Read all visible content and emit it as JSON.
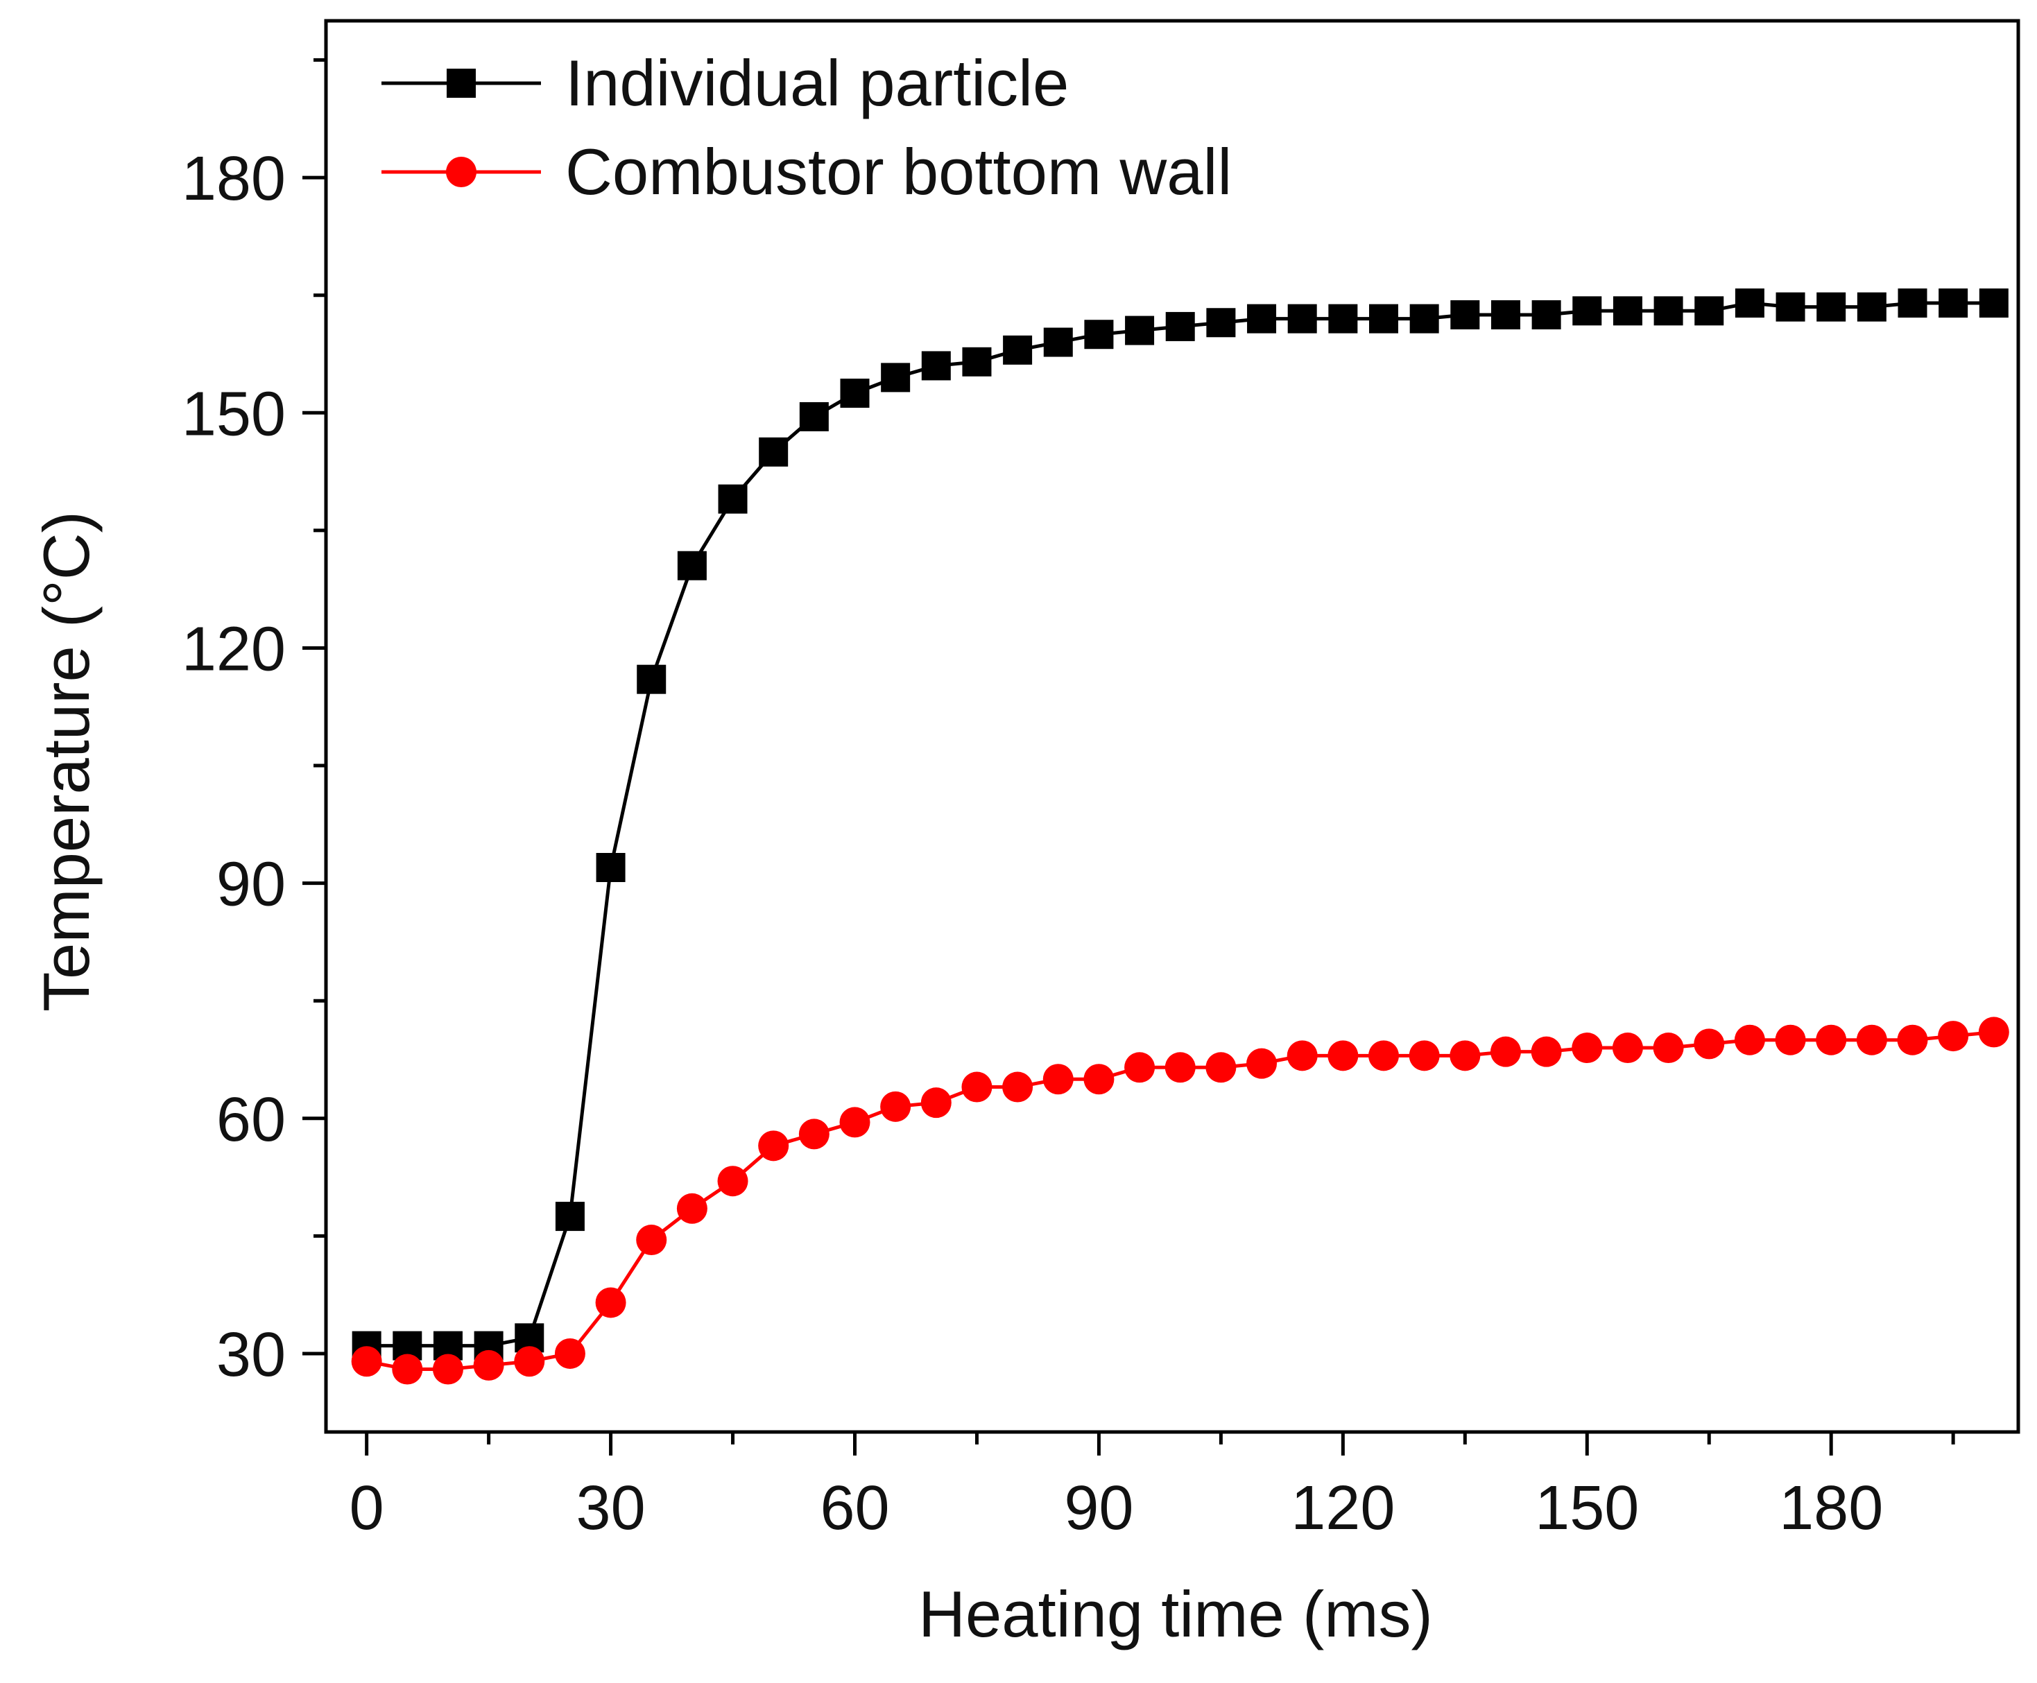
{
  "chart_data": {
    "type": "line",
    "title": "",
    "xlabel": "Heating time (ms)",
    "ylabel": "Temperature (°C)",
    "xlim": [
      -5,
      203
    ],
    "ylim": [
      20,
      200
    ],
    "xticks": [
      0,
      30,
      60,
      90,
      120,
      150,
      180
    ],
    "xticks_minor": [
      15,
      45,
      75,
      105,
      135,
      165,
      195
    ],
    "yticks": [
      30,
      60,
      90,
      120,
      150,
      180
    ],
    "yticks_minor": [
      45,
      75,
      105,
      135,
      165,
      195
    ],
    "legend_position": "top-left",
    "grid": false,
    "x": [
      0,
      5,
      10,
      15,
      20,
      25,
      30,
      35,
      40,
      45,
      50,
      55,
      60,
      65,
      70,
      75,
      80,
      85,
      90,
      95,
      100,
      105,
      110,
      115,
      120,
      125,
      130,
      135,
      140,
      145,
      150,
      155,
      160,
      165,
      170,
      175,
      180,
      185,
      190,
      195,
      200
    ],
    "series": [
      {
        "name": "Individual particle",
        "color": "#000000",
        "marker": "square",
        "values": [
          31,
          31,
          31,
          31,
          32,
          47.5,
          92,
          116,
          130.5,
          139,
          145,
          149.5,
          152.5,
          154.5,
          156,
          156.5,
          158,
          159,
          160,
          160.5,
          161,
          161.5,
          162,
          162,
          162,
          162,
          162,
          162.5,
          162.5,
          162.5,
          163,
          163,
          163,
          163,
          164,
          163.5,
          163.5,
          163.5,
          164,
          164,
          164
        ]
      },
      {
        "name": "Combustor bottom wall",
        "color": "#ff0000",
        "marker": "circle",
        "values": [
          29,
          28,
          28,
          28.5,
          29,
          30,
          36.5,
          44.5,
          48.5,
          52,
          56.5,
          58,
          59.5,
          61.5,
          62,
          64,
          64,
          65,
          65,
          66.5,
          66.5,
          66.5,
          67,
          68,
          68,
          68,
          68,
          68,
          68.5,
          68.5,
          69,
          69,
          69,
          69.5,
          70,
          70,
          70,
          70,
          70,
          70.5,
          71
        ]
      }
    ]
  }
}
